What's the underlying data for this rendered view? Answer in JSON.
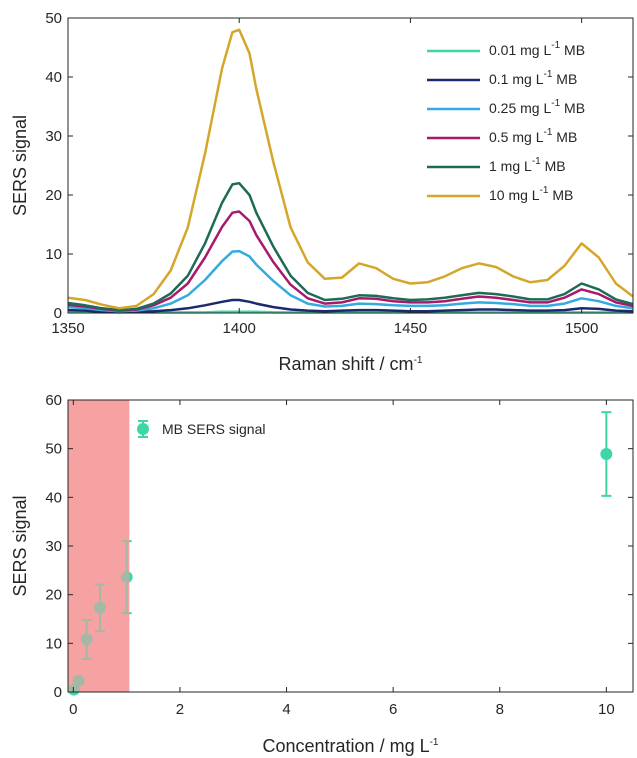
{
  "chart_data": [
    {
      "type": "line",
      "xlabel": "Raman shift / cm",
      "xlabel_sup": "-1",
      "ylabel": "SERS signal",
      "xlim": [
        1350,
        1515
      ],
      "ylim": [
        0,
        50
      ],
      "xticks": [
        1350,
        1400,
        1450,
        1500
      ],
      "yticks": [
        0,
        10,
        20,
        30,
        40,
        50
      ],
      "grid": false,
      "legend_position": "top-right",
      "x": [
        1350,
        1355,
        1360,
        1365,
        1370,
        1375,
        1380,
        1385,
        1390,
        1395,
        1398,
        1400,
        1403,
        1405,
        1410,
        1415,
        1420,
        1425,
        1430,
        1435,
        1440,
        1445,
        1450,
        1455,
        1460,
        1465,
        1470,
        1475,
        1480,
        1485,
        1490,
        1495,
        1500,
        1505,
        1510,
        1515
      ],
      "series": [
        {
          "name_parts": [
            "0.01 mg L",
            "-1",
            " MB"
          ],
          "color": "#3ed6a8",
          "values": [
            0.2,
            0.2,
            0.1,
            0.1,
            0.1,
            0.1,
            0.1,
            0.1,
            0.1,
            0.2,
            0.2,
            0.2,
            0.2,
            0.2,
            0.1,
            0.1,
            0.1,
            0.1,
            0.1,
            0.1,
            0.1,
            0.1,
            0.1,
            0.1,
            0.1,
            0.1,
            0.1,
            0.1,
            0.1,
            0.1,
            0.1,
            0.1,
            0.1,
            0.1,
            0.1,
            0.1
          ]
        },
        {
          "name_parts": [
            "0.1 mg L",
            "-1",
            " MB"
          ],
          "color": "#1a2a6c",
          "values": [
            0.5,
            0.4,
            0.2,
            0.1,
            0.2,
            0.3,
            0.5,
            0.8,
            1.3,
            1.9,
            2.2,
            2.2,
            1.9,
            1.6,
            1.0,
            0.6,
            0.4,
            0.3,
            0.4,
            0.5,
            0.5,
            0.4,
            0.3,
            0.3,
            0.4,
            0.5,
            0.6,
            0.6,
            0.5,
            0.4,
            0.4,
            0.5,
            0.8,
            0.7,
            0.4,
            0.3
          ]
        },
        {
          "name_parts": [
            "0.25 mg L",
            "-1",
            " MB"
          ],
          "color": "#33aae0",
          "values": [
            1.0,
            0.8,
            0.5,
            0.3,
            0.4,
            0.8,
            1.6,
            3.0,
            5.6,
            8.8,
            10.4,
            10.5,
            9.6,
            8.2,
            5.4,
            3.0,
            1.6,
            1.1,
            1.2,
            1.6,
            1.5,
            1.3,
            1.2,
            1.2,
            1.3,
            1.6,
            1.8,
            1.7,
            1.5,
            1.2,
            1.2,
            1.6,
            2.5,
            2.0,
            1.2,
            0.8
          ]
        },
        {
          "name_parts": [
            "0.5 mg L",
            "-1",
            " MB"
          ],
          "color": "#a8196e",
          "values": [
            1.4,
            1.1,
            0.7,
            0.4,
            0.6,
            1.3,
            2.6,
            5.0,
            9.4,
            14.6,
            17.0,
            17.2,
            15.6,
            13.2,
            8.6,
            4.8,
            2.5,
            1.6,
            1.8,
            2.5,
            2.4,
            2.0,
            1.8,
            1.8,
            2.0,
            2.4,
            2.8,
            2.6,
            2.2,
            1.8,
            1.8,
            2.6,
            4.0,
            3.2,
            1.8,
            1.2
          ]
        },
        {
          "name_parts": [
            "1 mg L",
            "-1",
            " MB"
          ],
          "color": "#1e6b55",
          "values": [
            1.7,
            1.3,
            0.8,
            0.5,
            0.7,
            1.6,
            3.3,
            6.3,
            11.8,
            18.7,
            21.8,
            22.0,
            20.0,
            17.0,
            11.2,
            6.3,
            3.4,
            2.2,
            2.4,
            3.0,
            2.9,
            2.5,
            2.2,
            2.3,
            2.6,
            3.0,
            3.4,
            3.2,
            2.8,
            2.3,
            2.3,
            3.2,
            5.0,
            4.0,
            2.3,
            1.5
          ]
        },
        {
          "name_parts": [
            "10 mg L",
            "-1",
            " MB"
          ],
          "color": "#d4a62a",
          "values": [
            2.6,
            2.2,
            1.4,
            0.8,
            1.2,
            3.2,
            7.2,
            14.5,
            27.0,
            41.5,
            47.6,
            48.0,
            44.0,
            38.0,
            25.5,
            14.5,
            8.6,
            5.8,
            6.0,
            8.4,
            7.6,
            5.8,
            5.0,
            5.2,
            6.2,
            7.6,
            8.4,
            7.8,
            6.2,
            5.2,
            5.6,
            8.0,
            11.8,
            9.4,
            5.0,
            2.8
          ]
        }
      ]
    },
    {
      "type": "scatter",
      "xlabel": "Concentration / mg L",
      "xlabel_sup": "-1",
      "ylabel": "SERS signal",
      "xlim": [
        -0.1,
        10.5
      ],
      "ylim": [
        0,
        60
      ],
      "xticks": [
        0,
        2,
        4,
        6,
        8,
        10
      ],
      "yticks": [
        0,
        10,
        20,
        30,
        40,
        50,
        60
      ],
      "grid": false,
      "legend_position": "top-left",
      "shaded_region": {
        "x": [
          -0.1,
          1.05
        ],
        "color": "#f7a3a3"
      },
      "series": [
        {
          "name": "MB SERS signal",
          "color": "#3ed6a8",
          "x": [
            0.01,
            0.1,
            0.25,
            0.5,
            1,
            10
          ],
          "y": [
            0.5,
            2.3,
            10.8,
            17.3,
            23.6,
            48.9
          ],
          "error": [
            0.2,
            0.5,
            4.0,
            4.8,
            7.4,
            8.6
          ]
        }
      ]
    }
  ]
}
